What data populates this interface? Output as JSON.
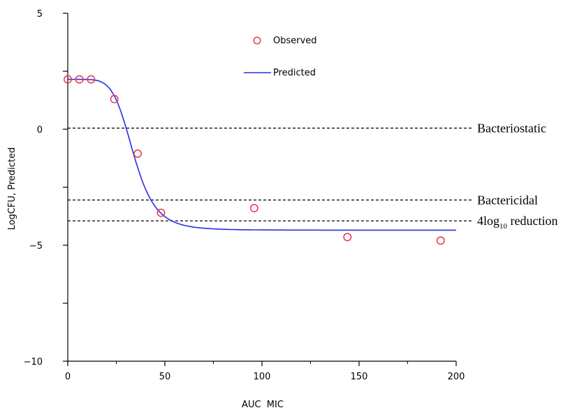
{
  "chart_data": {
    "type": "scatter",
    "xlabel": "AUC  MIC",
    "ylabel": "LogCFU, Predicted",
    "xlim": [
      0,
      200
    ],
    "ylim": [
      -10,
      5
    ],
    "x_ticks": [
      0,
      50,
      100,
      150,
      200
    ],
    "y_ticks_labeled": [
      5,
      0,
      -5,
      -10
    ],
    "y_ticks_minor": [
      2.5,
      -2.5,
      -7.5
    ],
    "x_minor_ticks": [
      25,
      75,
      125,
      175
    ],
    "grid": false,
    "legend": {
      "position": "top-center",
      "entries": [
        {
          "label": "Observed",
          "marker": "open-circle",
          "color": "#e8384a"
        },
        {
          "label": "Predicted",
          "marker": "line",
          "color": "#2a2ee0"
        }
      ]
    },
    "series": [
      {
        "name": "Observed",
        "kind": "points",
        "color": "#e8384a",
        "x": [
          0,
          6,
          12,
          24,
          36,
          48,
          96,
          144,
          192
        ],
        "y": [
          2.15,
          2.15,
          2.15,
          1.3,
          -1.05,
          -3.6,
          -3.4,
          -4.65,
          -4.8
        ]
      },
      {
        "name": "Predicted",
        "kind": "sigmoid-line",
        "color": "#2a2ee0",
        "e0": 2.15,
        "emin": -4.35,
        "ec50": 34,
        "hill": 6,
        "x_range": [
          0,
          200
        ]
      }
    ],
    "reference_lines": [
      {
        "label": "Bacteriostatic",
        "y": 0.05
      },
      {
        "label": "Bactericidal",
        "y": -3.05
      },
      {
        "label_main": "4log",
        "label_sub": "10",
        "label_rest": " reduction",
        "y": -3.95
      }
    ]
  }
}
